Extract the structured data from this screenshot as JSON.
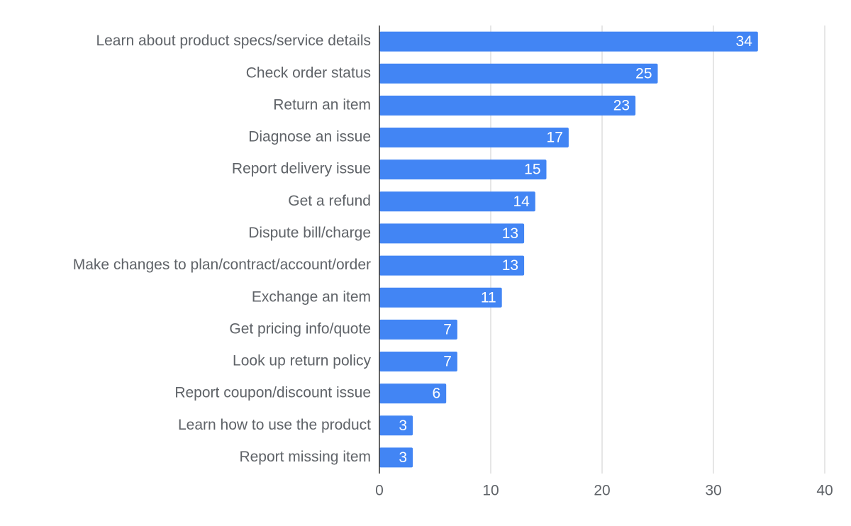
{
  "chart_data": {
    "type": "bar",
    "orientation": "horizontal",
    "categories": [
      "Learn about product specs/service details",
      "Check order status",
      "Return an item",
      "Diagnose an issue",
      "Report delivery issue",
      "Get a refund",
      "Dispute bill/charge",
      "Make changes to plan/contract/account/order",
      "Exchange an item",
      "Get pricing info/quote",
      "Look up return policy",
      "Report coupon/discount issue",
      "Learn how to use the product",
      "Report missing item"
    ],
    "values": [
      34,
      25,
      23,
      17,
      15,
      14,
      13,
      13,
      11,
      7,
      7,
      6,
      3,
      3
    ],
    "color": "#4285f4",
    "xlim": [
      0,
      40
    ],
    "xticks": [
      0,
      10,
      20,
      30,
      40
    ],
    "grid": true,
    "data_labels": true
  }
}
